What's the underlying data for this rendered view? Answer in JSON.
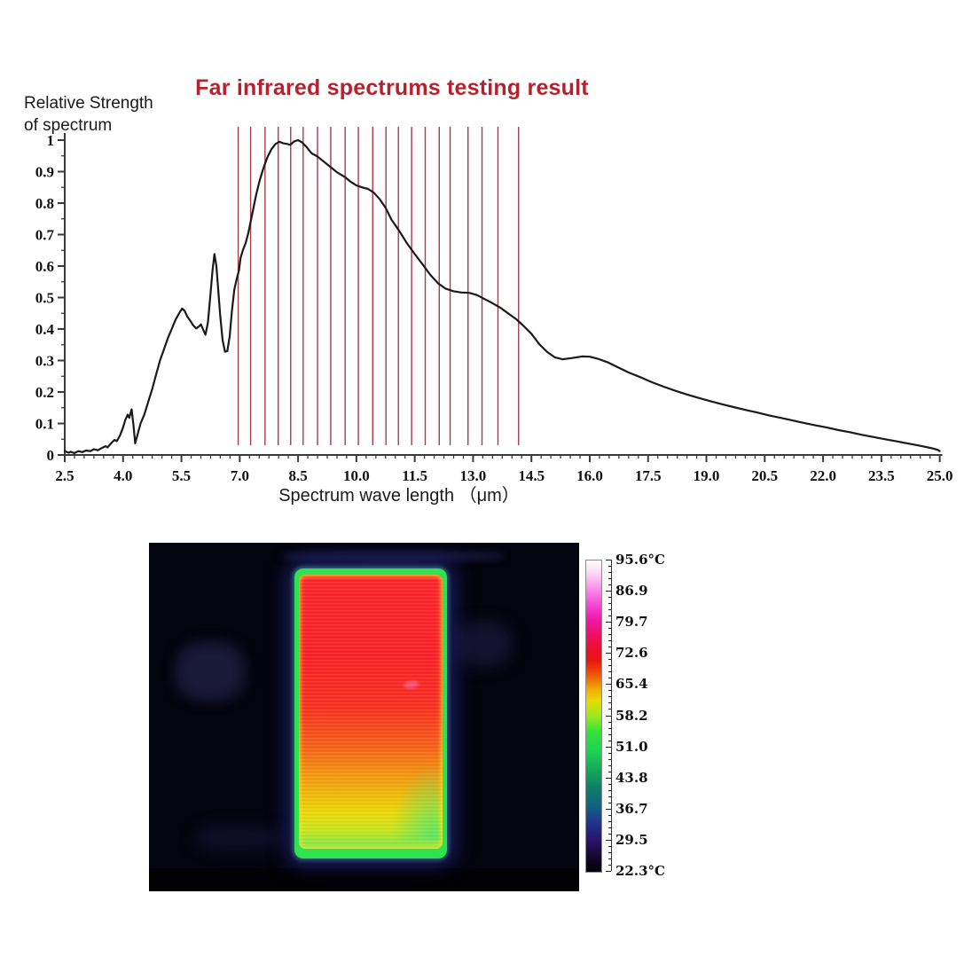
{
  "title": {
    "text": "Far infrared spectrums testing result",
    "color": "#b5222e"
  },
  "spectrum_chart": {
    "y_axis_title_line1": "Relative Strength",
    "y_axis_title_line2": "of spectrum",
    "x_axis_title": "Spectrum wave length （μm）",
    "curve_color": "#1a1a1a",
    "red_line_color": "#a93a4c",
    "axis_color": "#3a3a3a"
  },
  "chart_data": {
    "type": "line",
    "title": "Far infrared spectrums testing result",
    "xlabel": "Spectrum wave length (μm)",
    "ylabel": "Relative Strength of spectrum",
    "xlim": [
      2.5,
      25.0
    ],
    "ylim": [
      0,
      1
    ],
    "grid": false,
    "x_tick_labels": [
      "2.5",
      "4.0",
      "5.5",
      "7.0",
      "8.5",
      "10.0",
      "11.5",
      "13.0",
      "14.5",
      "16.0",
      "17.5",
      "19.0",
      "20.5",
      "22.0",
      "23.5",
      "25.0"
    ],
    "x_ticks": [
      2.5,
      4.0,
      5.5,
      7.0,
      8.5,
      10.0,
      11.5,
      13.0,
      14.5,
      16.0,
      17.5,
      19.0,
      20.5,
      22.0,
      23.5,
      25.0
    ],
    "x_minor_step": 0.25,
    "y_tick_labels": [
      "0",
      "0.1",
      "0.2",
      "0.3",
      "0.4",
      "0.5",
      "0.6",
      "0.7",
      "0.8",
      "0.9",
      "1"
    ],
    "y_ticks": [
      0,
      0.1,
      0.2,
      0.3,
      0.4,
      0.5,
      0.6,
      0.7,
      0.8,
      0.9,
      1
    ],
    "y_minor_step": 0.05,
    "red_gridlines_um": [
      6.96,
      7.28,
      7.65,
      7.99,
      8.31,
      8.63,
      9.0,
      9.34,
      9.71,
      10.05,
      10.42,
      10.76,
      11.08,
      11.42,
      11.77,
      12.13,
      12.41,
      12.87,
      13.23,
      13.64,
      14.17
    ],
    "series": [
      {
        "name": "far-infrared-spectrum",
        "points": [
          [
            2.5,
            0.012
          ],
          [
            2.6,
            0.007
          ],
          [
            2.65,
            0.01
          ],
          [
            2.75,
            0.006
          ],
          [
            2.85,
            0.012
          ],
          [
            2.95,
            0.009
          ],
          [
            3.05,
            0.014
          ],
          [
            3.15,
            0.012
          ],
          [
            3.25,
            0.018
          ],
          [
            3.35,
            0.015
          ],
          [
            3.45,
            0.022
          ],
          [
            3.55,
            0.028
          ],
          [
            3.6,
            0.024
          ],
          [
            3.7,
            0.038
          ],
          [
            3.78,
            0.048
          ],
          [
            3.84,
            0.044
          ],
          [
            3.92,
            0.062
          ],
          [
            4.0,
            0.088
          ],
          [
            4.06,
            0.112
          ],
          [
            4.12,
            0.128
          ],
          [
            4.16,
            0.118
          ],
          [
            4.22,
            0.145
          ],
          [
            4.27,
            0.092
          ],
          [
            4.31,
            0.037
          ],
          [
            4.38,
            0.068
          ],
          [
            4.45,
            0.1
          ],
          [
            4.55,
            0.13
          ],
          [
            4.65,
            0.17
          ],
          [
            4.75,
            0.21
          ],
          [
            4.85,
            0.255
          ],
          [
            4.95,
            0.3
          ],
          [
            5.05,
            0.335
          ],
          [
            5.15,
            0.37
          ],
          [
            5.25,
            0.4
          ],
          [
            5.35,
            0.43
          ],
          [
            5.45,
            0.452
          ],
          [
            5.52,
            0.465
          ],
          [
            5.58,
            0.458
          ],
          [
            5.65,
            0.44
          ],
          [
            5.72,
            0.428
          ],
          [
            5.8,
            0.412
          ],
          [
            5.88,
            0.402
          ],
          [
            5.95,
            0.408
          ],
          [
            6.0,
            0.415
          ],
          [
            6.06,
            0.398
          ],
          [
            6.12,
            0.382
          ],
          [
            6.18,
            0.42
          ],
          [
            6.24,
            0.5
          ],
          [
            6.3,
            0.585
          ],
          [
            6.35,
            0.638
          ],
          [
            6.4,
            0.6
          ],
          [
            6.45,
            0.52
          ],
          [
            6.5,
            0.44
          ],
          [
            6.56,
            0.365
          ],
          [
            6.62,
            0.328
          ],
          [
            6.68,
            0.33
          ],
          [
            6.74,
            0.375
          ],
          [
            6.8,
            0.46
          ],
          [
            6.86,
            0.525
          ],
          [
            6.92,
            0.558
          ],
          [
            6.98,
            0.585
          ],
          [
            7.02,
            0.625
          ],
          [
            7.08,
            0.65
          ],
          [
            7.15,
            0.672
          ],
          [
            7.22,
            0.705
          ],
          [
            7.32,
            0.765
          ],
          [
            7.42,
            0.825
          ],
          [
            7.52,
            0.875
          ],
          [
            7.62,
            0.915
          ],
          [
            7.72,
            0.948
          ],
          [
            7.82,
            0.972
          ],
          [
            7.92,
            0.988
          ],
          [
            8.02,
            0.995
          ],
          [
            8.12,
            0.99
          ],
          [
            8.22,
            0.988
          ],
          [
            8.3,
            0.985
          ],
          [
            8.4,
            0.996
          ],
          [
            8.5,
            1.0
          ],
          [
            8.6,
            0.993
          ],
          [
            8.72,
            0.978
          ],
          [
            8.85,
            0.958
          ],
          [
            9.0,
            0.948
          ],
          [
            9.15,
            0.933
          ],
          [
            9.3,
            0.918
          ],
          [
            9.5,
            0.898
          ],
          [
            9.7,
            0.883
          ],
          [
            9.85,
            0.868
          ],
          [
            10.0,
            0.856
          ],
          [
            10.15,
            0.85
          ],
          [
            10.3,
            0.845
          ],
          [
            10.45,
            0.833
          ],
          [
            10.6,
            0.812
          ],
          [
            10.75,
            0.785
          ],
          [
            10.9,
            0.748
          ],
          [
            11.1,
            0.712
          ],
          [
            11.3,
            0.672
          ],
          [
            11.5,
            0.638
          ],
          [
            11.7,
            0.606
          ],
          [
            11.9,
            0.572
          ],
          [
            12.1,
            0.545
          ],
          [
            12.3,
            0.528
          ],
          [
            12.5,
            0.52
          ],
          [
            12.7,
            0.516
          ],
          [
            12.9,
            0.515
          ],
          [
            13.1,
            0.508
          ],
          [
            13.3,
            0.495
          ],
          [
            13.5,
            0.482
          ],
          [
            13.7,
            0.468
          ],
          [
            13.9,
            0.45
          ],
          [
            14.1,
            0.432
          ],
          [
            14.3,
            0.41
          ],
          [
            14.5,
            0.385
          ],
          [
            14.7,
            0.352
          ],
          [
            14.9,
            0.328
          ],
          [
            15.1,
            0.31
          ],
          [
            15.3,
            0.304
          ],
          [
            15.55,
            0.308
          ],
          [
            15.8,
            0.313
          ],
          [
            16.0,
            0.312
          ],
          [
            16.2,
            0.306
          ],
          [
            16.45,
            0.295
          ],
          [
            16.7,
            0.28
          ],
          [
            17.0,
            0.262
          ],
          [
            17.3,
            0.247
          ],
          [
            17.6,
            0.231
          ],
          [
            17.9,
            0.217
          ],
          [
            18.2,
            0.204
          ],
          [
            18.5,
            0.192
          ],
          [
            18.8,
            0.181
          ],
          [
            19.1,
            0.171
          ],
          [
            19.4,
            0.161
          ],
          [
            19.7,
            0.152
          ],
          [
            20.0,
            0.143
          ],
          [
            20.3,
            0.135
          ],
          [
            20.6,
            0.126
          ],
          [
            20.9,
            0.118
          ],
          [
            21.2,
            0.11
          ],
          [
            21.5,
            0.102
          ],
          [
            21.8,
            0.094
          ],
          [
            22.1,
            0.087
          ],
          [
            22.4,
            0.079
          ],
          [
            22.7,
            0.072
          ],
          [
            23.0,
            0.064
          ],
          [
            23.3,
            0.057
          ],
          [
            23.6,
            0.05
          ],
          [
            23.9,
            0.043
          ],
          [
            24.2,
            0.036
          ],
          [
            24.5,
            0.029
          ],
          [
            24.7,
            0.024
          ],
          [
            24.85,
            0.02
          ],
          [
            24.95,
            0.016
          ],
          [
            25.0,
            0.012
          ]
        ]
      }
    ]
  },
  "thermal_image": {
    "colorbar": {
      "labels": [
        "95.6°C",
        "86.9",
        "79.7",
        "72.6",
        "65.4",
        "58.2",
        "51.0",
        "43.8",
        "36.7",
        "29.5",
        "22.3°C"
      ],
      "max_temp": "95.6°C",
      "min_temp": "22.3°C"
    }
  }
}
